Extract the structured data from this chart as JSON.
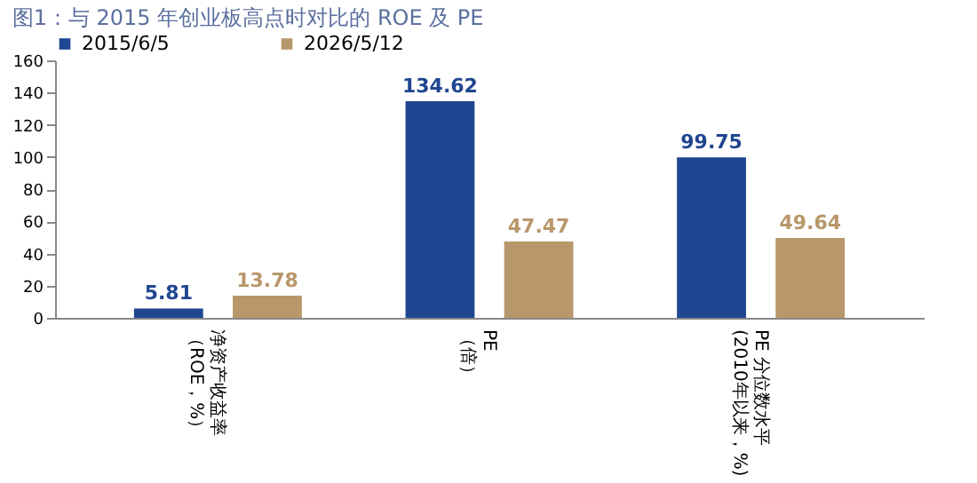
{
  "chart_data": {
    "type": "bar",
    "title": "图1：与 2015 年创业板高点时对比的 ROE 及 PE",
    "categories": [
      "净资产收益率（ROE，%）",
      "PE（倍）",
      "PE 分位数水平(2010年以来，%)"
    ],
    "series": [
      {
        "name": "2015/6/5",
        "color": "#1f4690",
        "values": [
          5.81,
          134.62,
          99.75
        ]
      },
      {
        "name": "2026/5/12",
        "color": "#b8976a",
        "values": [
          13.78,
          47.47,
          49.64
        ]
      }
    ],
    "ylim": [
      0,
      160
    ],
    "yticks": [
      0,
      20,
      40,
      60,
      80,
      100,
      120,
      140,
      160
    ],
    "grid": false,
    "legend": "top",
    "data_labels": true
  }
}
